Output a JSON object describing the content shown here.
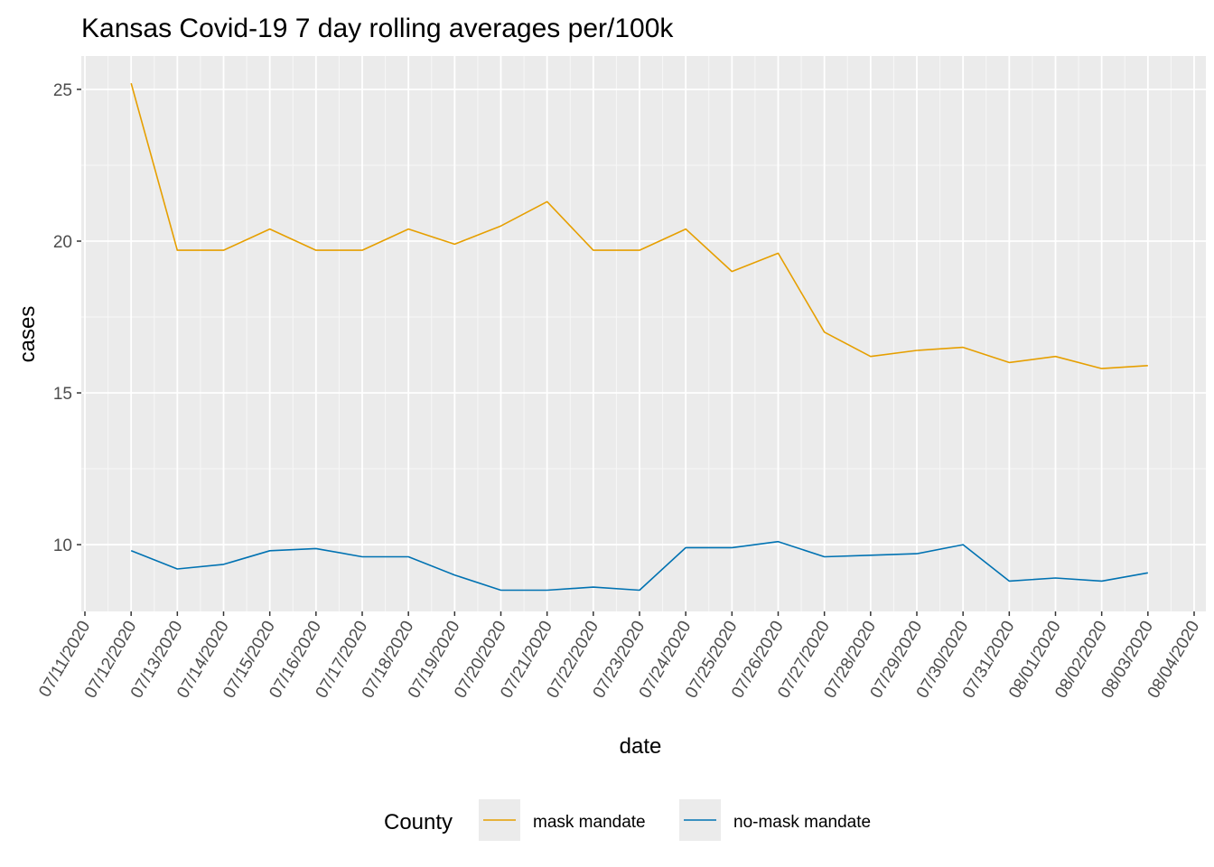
{
  "chart_data": {
    "type": "line",
    "title": "Kansas Covid-19 7 day rolling averages per/100k",
    "xlabel": "date",
    "ylabel": "cases",
    "x": [
      "07/12/2020",
      "07/13/2020",
      "07/14/2020",
      "07/15/2020",
      "07/16/2020",
      "07/17/2020",
      "07/18/2020",
      "07/19/2020",
      "07/20/2020",
      "07/21/2020",
      "07/22/2020",
      "07/23/2020",
      "07/24/2020",
      "07/25/2020",
      "07/26/2020",
      "07/27/2020",
      "07/28/2020",
      "07/29/2020",
      "07/30/2020",
      "07/31/2020",
      "08/01/2020",
      "08/02/2020",
      "08/03/2020"
    ],
    "x_ticks": [
      "07/11/2020",
      "07/12/2020",
      "07/13/2020",
      "07/14/2020",
      "07/15/2020",
      "07/16/2020",
      "07/17/2020",
      "07/18/2020",
      "07/19/2020",
      "07/20/2020",
      "07/21/2020",
      "07/22/2020",
      "07/23/2020",
      "07/24/2020",
      "07/25/2020",
      "07/26/2020",
      "07/27/2020",
      "07/28/2020",
      "07/29/2020",
      "07/30/2020",
      "07/31/2020",
      "08/01/2020",
      "08/02/2020",
      "08/03/2020",
      "08/04/2020"
    ],
    "xlim": [
      "07/11/2020",
      "08/04/2020"
    ],
    "y_ticks": [
      10,
      15,
      20,
      25
    ],
    "ylim": [
      7.8,
      26.1
    ],
    "grid": true,
    "legend": {
      "title": "County",
      "position": "bottom"
    },
    "series": [
      {
        "name": "mask mandate",
        "color": "#E69F00",
        "values": [
          25.2,
          19.7,
          19.7,
          20.4,
          19.7,
          19.7,
          20.4,
          19.9,
          20.5,
          21.3,
          19.7,
          19.7,
          20.4,
          19.0,
          19.6,
          17.0,
          16.2,
          16.4,
          16.5,
          16.0,
          16.2,
          15.8,
          15.9
        ]
      },
      {
        "name": "no-mask mandate",
        "color": "#0072B2",
        "values": [
          9.8,
          9.2,
          9.35,
          9.8,
          9.87,
          9.6,
          9.6,
          9.0,
          8.5,
          8.5,
          8.6,
          8.5,
          9.9,
          9.9,
          10.1,
          9.6,
          9.65,
          9.7,
          10.0,
          8.8,
          8.9,
          8.8,
          9.07
        ]
      }
    ]
  }
}
